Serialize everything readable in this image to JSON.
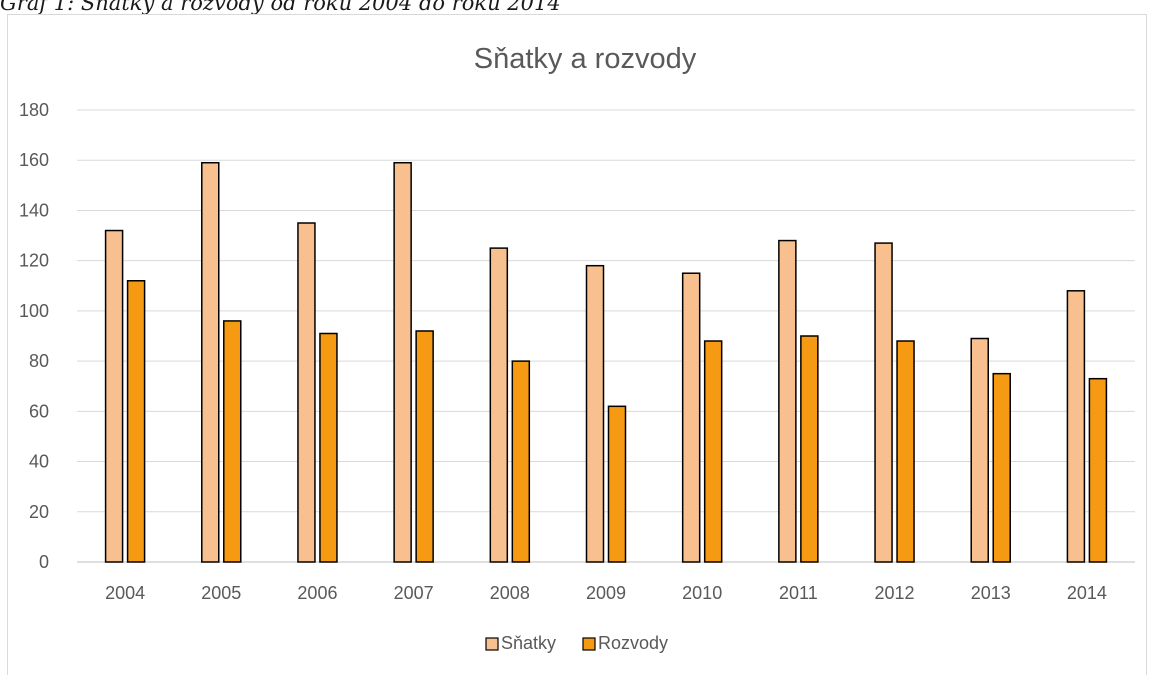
{
  "caption": "Graf 1: Sňatky a rozvody od roku 2004 do roku 2014",
  "chart_data": {
    "type": "bar",
    "title": "Sňatky a rozvody",
    "xlabel": "",
    "ylabel": "",
    "ylim": [
      0,
      180
    ],
    "yticks": [
      0,
      20,
      40,
      60,
      80,
      100,
      120,
      140,
      160,
      180
    ],
    "grid": true,
    "legend_position": "bottom",
    "categories": [
      "2004",
      "2005",
      "2006",
      "2007",
      "2008",
      "2009",
      "2010",
      "2011",
      "2012",
      "2013",
      "2014"
    ],
    "series": [
      {
        "name": "Sňatky",
        "color": "#f8c08e",
        "values": [
          132,
          159,
          135,
          159,
          125,
          118,
          115,
          128,
          127,
          89,
          108
        ]
      },
      {
        "name": "Rozvody",
        "color": "#f59a12",
        "values": [
          112,
          96,
          91,
          92,
          80,
          62,
          88,
          90,
          88,
          75,
          73
        ]
      }
    ]
  }
}
